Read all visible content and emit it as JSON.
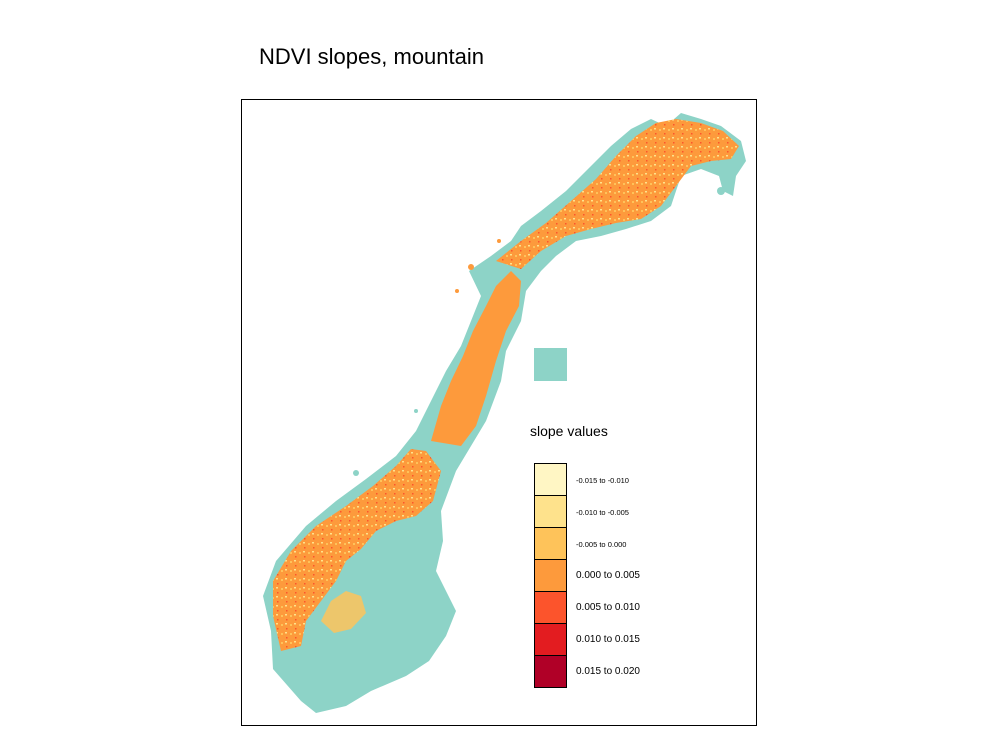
{
  "title": "NDVI slopes, mountain",
  "colors": {
    "na": "#8dd3c7",
    "dominant": "#fd9a3c",
    "background": "#ffffff"
  },
  "legend": {
    "title": "slope values",
    "items": [
      {
        "label": "-0.015 to -0.010",
        "color": "#fff6c4"
      },
      {
        "label": "-0.010 to -0.005",
        "color": "#fee28c"
      },
      {
        "label": "-0.005 to 0.000",
        "color": "#fec35a"
      },
      {
        "label": "0.000 to 0.005",
        "color": "#fd9a3c"
      },
      {
        "label": "0.005 to 0.010",
        "color": "#fc542c"
      },
      {
        "label": "0.010 to 0.015",
        "color": "#e31c20"
      },
      {
        "label": "0.015 to 0.020",
        "color": "#b00027"
      }
    ]
  }
}
